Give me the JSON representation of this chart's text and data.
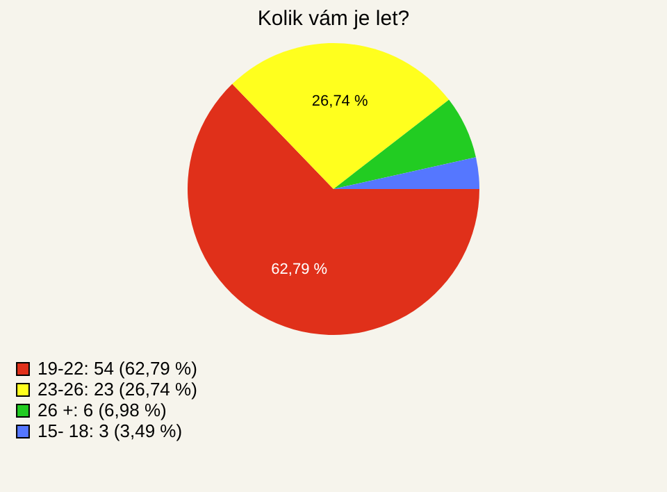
{
  "chart_data": {
    "type": "pie",
    "title": "Kolik vám je let?",
    "categories": [
      "19-22: 54 (62,79 %)",
      "23-26: 23 (26,74 %)",
      "26 +: 6 (6,98 %)",
      "15- 18: 3 (3,49 %)"
    ],
    "values": [
      62.79,
      26.74,
      6.98,
      3.49
    ],
    "colors": [
      "#e0301a",
      "#ffff1e",
      "#22cc22",
      "#5577ff"
    ],
    "value_labels": [
      "62,79 %",
      "26,74 %",
      null,
      null
    ],
    "legend": "bottom left"
  }
}
